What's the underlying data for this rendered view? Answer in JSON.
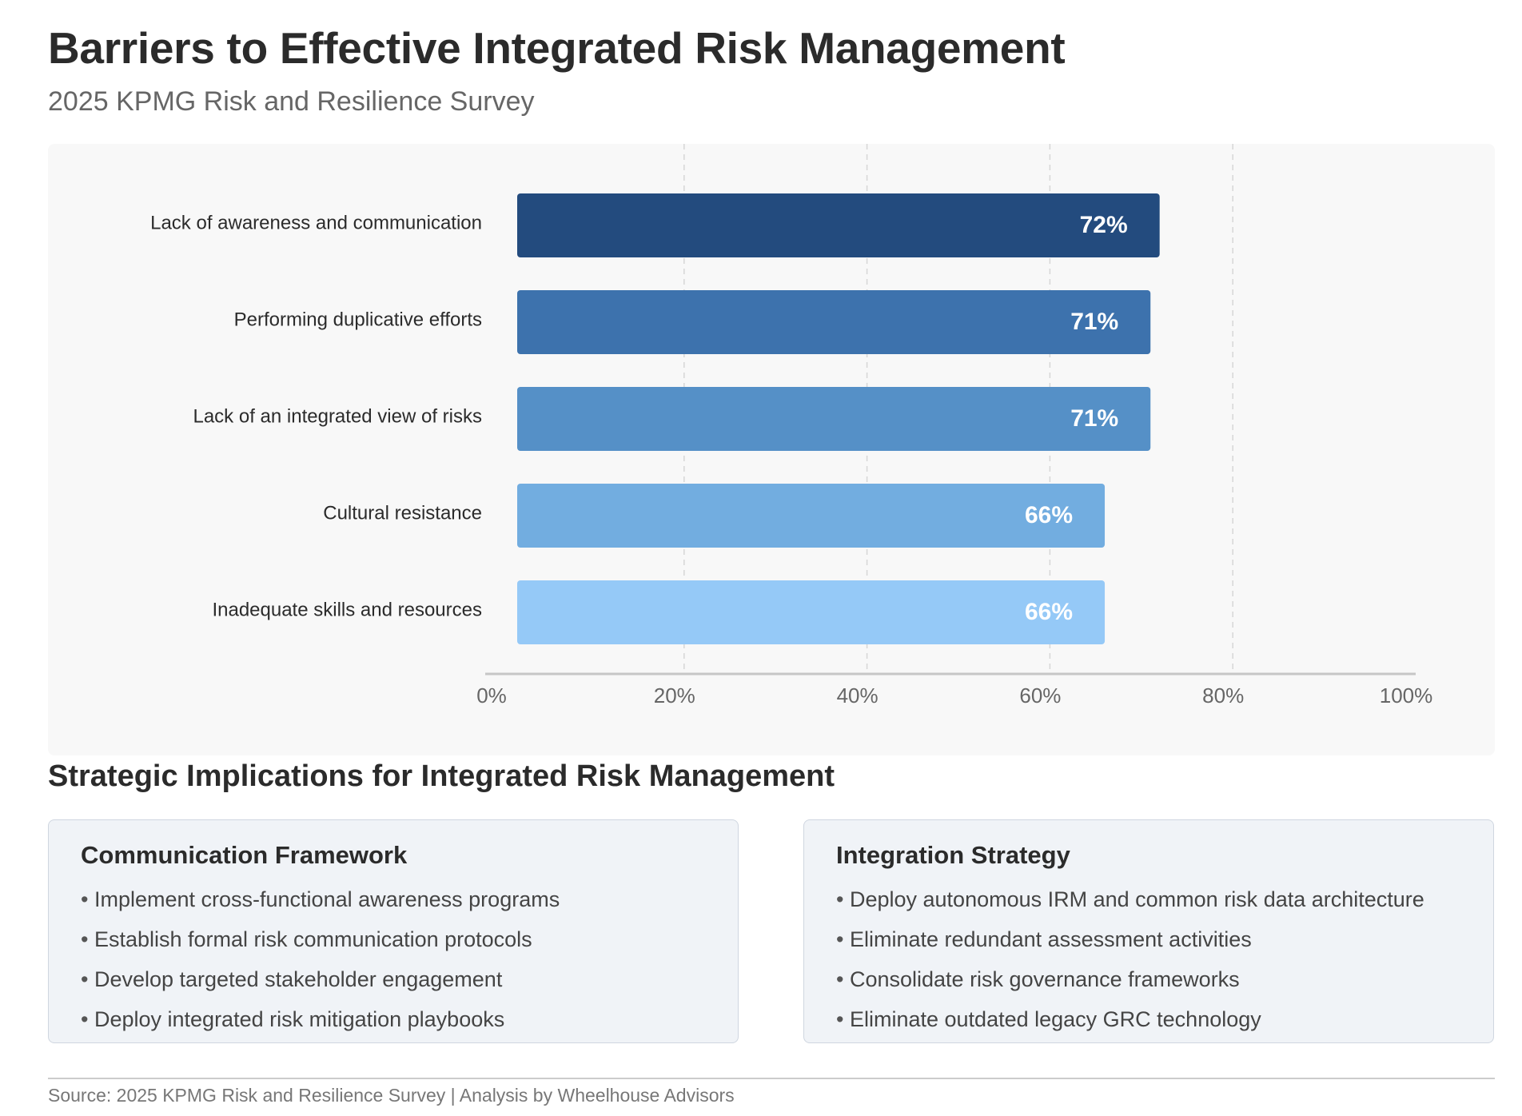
{
  "header": {
    "title": "Barriers to Effective Integrated Risk Management",
    "subtitle": "2025 KPMG Risk and Resilience Survey"
  },
  "chart_data": {
    "type": "bar",
    "orientation": "horizontal",
    "categories": [
      "Lack of awareness and communication",
      "Performing duplicative efforts",
      "Lack of an integrated view of risks",
      "Cultural resistance",
      "Inadequate skills and resources"
    ],
    "values": [
      72,
      71,
      71,
      66,
      66
    ],
    "value_labels": [
      "72%",
      "71%",
      "71%",
      "66%",
      "66%"
    ],
    "colors": [
      "#234b7e",
      "#3d72ad",
      "#5590c7",
      "#72ade0",
      "#95c9f7"
    ],
    "xlim": [
      0,
      100
    ],
    "x_ticks": [
      0,
      20,
      40,
      60,
      80,
      100
    ],
    "x_tick_labels": [
      "0%",
      "20%",
      "40%",
      "60%",
      "80%",
      "100%"
    ],
    "grid": "vertical dashed",
    "legend": "none"
  },
  "implications": {
    "title": "Strategic Implications for Integrated Risk Management",
    "cards": [
      {
        "title": "Communication Framework",
        "items": [
          "Implement cross-functional awareness programs",
          "Establish formal risk communication protocols",
          "Develop targeted stakeholder engagement",
          "Deploy integrated risk mitigation playbooks"
        ]
      },
      {
        "title": "Integration Strategy",
        "items": [
          "Deploy autonomous IRM and common risk data architecture",
          "Eliminate redundant assessment activities",
          "Consolidate risk governance frameworks",
          "Eliminate outdated legacy GRC technology"
        ]
      }
    ]
  },
  "footer": {
    "source": "Source: 2025 KPMG Risk and Resilience Survey | Analysis by Wheelhouse Advisors"
  }
}
